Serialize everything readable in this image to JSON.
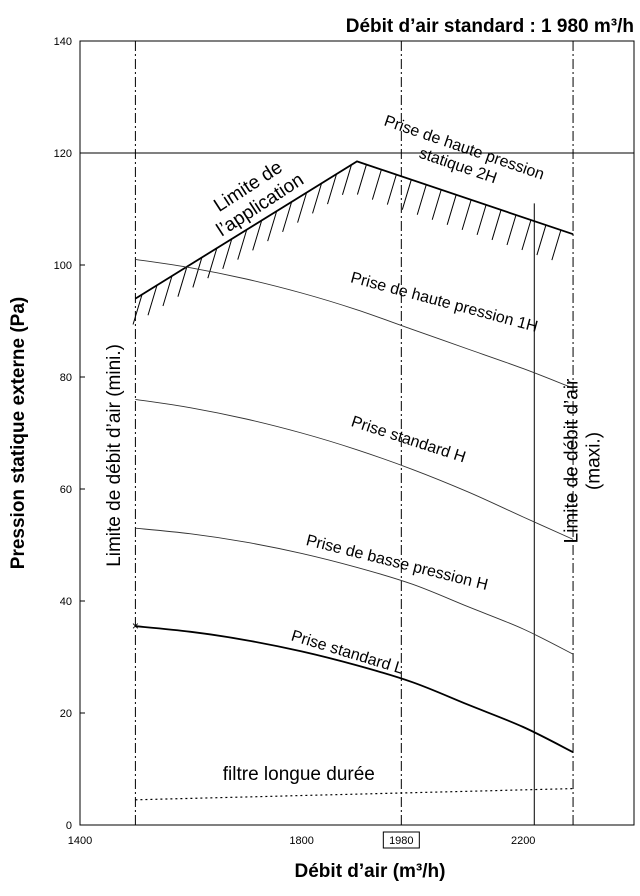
{
  "chart_data": {
    "type": "line",
    "title": "Débit d’air standard : 1 980 m³/h",
    "xlabel": "Débit d’air (m³/h)",
    "ylabel": "Pression statique externe (Pa)",
    "xlim": [
      1400,
      2400
    ],
    "ylim": [
      0,
      140
    ],
    "x_ticks": [
      "1400",
      "1800",
      "1980",
      "2200"
    ],
    "y_ticks": [
      "0",
      "20",
      "40",
      "60",
      "80",
      "100",
      "120",
      "140"
    ],
    "highlighted_x_tick": "1980",
    "reference_lines": {
      "horizontal_y": 120,
      "vertical_solid_x": 2220
    },
    "limits": [
      {
        "label": "Limite de débit d’air (mini.)",
        "x": 1500
      },
      {
        "label_lines": [
          "Limite de débit d’air",
          "(maxi.)"
        ],
        "x": 2290
      }
    ],
    "standard_airflow_x": 1980,
    "application_limit": {
      "label_lines": [
        "Limite de",
        "l’application"
      ],
      "x": [
        1500,
        1900,
        2290
      ],
      "y": [
        94,
        118.5,
        105.5
      ]
    },
    "series": [
      {
        "name": "Prise de haute pression statique 2H",
        "label_lines": [
          "Prise de haute pression",
          "statique 2H"
        ],
        "x": [
          1500,
          1900,
          2290
        ],
        "y": [
          94,
          118.5,
          105.5
        ],
        "style": "bold"
      },
      {
        "name": "Prise de haute pression 1H",
        "x": [
          1500,
          1600,
          1700,
          1800,
          1900,
          2000,
          2100,
          2200,
          2290
        ],
        "y": [
          101,
          99.5,
          97.5,
          95,
          92,
          88.5,
          85,
          81.5,
          78
        ],
        "style": "thin"
      },
      {
        "name": "Prise standard H",
        "x": [
          1500,
          1600,
          1700,
          1800,
          1900,
          2000,
          2100,
          2200,
          2290
        ],
        "y": [
          76,
          74.5,
          72.5,
          70,
          67,
          63.5,
          59.5,
          55,
          51
        ],
        "style": "thin"
      },
      {
        "name": "Prise de basse pression H",
        "x": [
          1500,
          1600,
          1700,
          1800,
          1900,
          2000,
          2100,
          2200,
          2290
        ],
        "y": [
          53,
          52,
          50.5,
          48.5,
          46,
          43,
          39,
          35,
          30.5
        ],
        "style": "thin"
      },
      {
        "name": "Prise standard L",
        "x": [
          1500,
          1600,
          1700,
          1800,
          1900,
          2000,
          2100,
          2200,
          2290
        ],
        "y": [
          35.5,
          34.5,
          33,
          31,
          28.5,
          25.5,
          21.5,
          17.5,
          13
        ],
        "style": "bold",
        "start_marker": "×"
      },
      {
        "name": "filtre longue durée",
        "x": [
          1500,
          2290
        ],
        "y": [
          4.5,
          6.5
        ],
        "style": "dotted"
      }
    ],
    "grid": false,
    "legend": "none"
  }
}
